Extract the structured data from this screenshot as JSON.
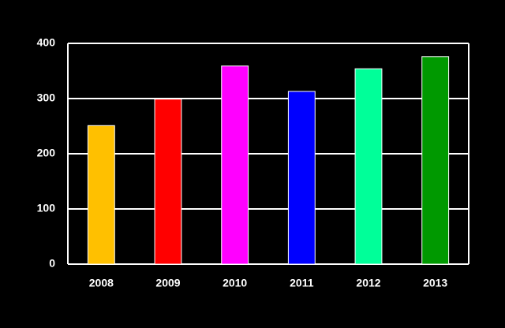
{
  "chart_data": {
    "type": "bar",
    "categories": [
      "2008",
      "2009",
      "2010",
      "2011",
      "2012",
      "2013"
    ],
    "values": [
      251,
      299,
      359,
      313,
      354,
      376
    ],
    "colors": [
      "#ffc000",
      "#ff0000",
      "#ff00ff",
      "#0000ff",
      "#00ff99",
      "#009900"
    ],
    "ylim": [
      0,
      400
    ],
    "yticks": [
      0,
      100,
      200,
      300,
      400
    ],
    "grid": true
  }
}
